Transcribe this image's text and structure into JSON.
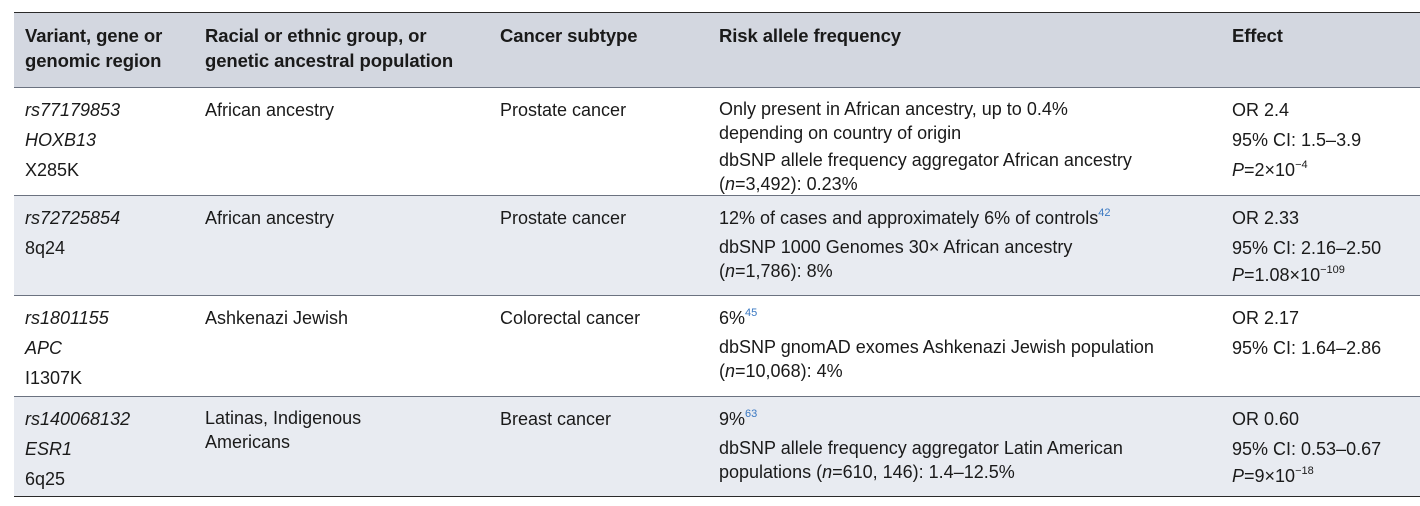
{
  "headers": {
    "variant": [
      "Variant, gene or",
      "genomic region"
    ],
    "group": [
      "Racial or ethnic group, or",
      "genetic ancestral population"
    ],
    "subtype": "Cancer subtype",
    "frequency": "Risk allele frequency",
    "effect": "Effect"
  },
  "rows": [
    {
      "variant": [
        "rs77179853",
        "HOXB13",
        "X285K"
      ],
      "group": "African ancestry",
      "subtype": "Prostate cancer",
      "freq1": [
        "Only present in African ancestry, up to 0.4%",
        "depending on country of origin"
      ],
      "freq2_a": "dbSNP allele frequency aggregator African ancestry",
      "freq2_b_pre": "(",
      "freq2_b_n": "n",
      "freq2_b_post": "=3,492): 0.23%",
      "effect_or": "OR 2.4",
      "effect_ci": "95% CI: 1.5–3.9",
      "effect_p_label": "P",
      "effect_p_base": "=2×10",
      "effect_p_exp": "−4"
    },
    {
      "variant": [
        "rs72725854",
        "8q24"
      ],
      "group": "African ancestry",
      "subtype": "Prostate cancer",
      "freq1_text": "12% of cases and approximately 6% of controls",
      "freq1_ref": "42",
      "freq2_a": "dbSNP 1000 Genomes 30× African ancestry",
      "freq2_b_pre": "(",
      "freq2_b_n": "n",
      "freq2_b_post": "=1,786): 8%",
      "effect_or": "OR 2.33",
      "effect_ci": "95% CI: 2.16–2.50",
      "effect_p_label": "P",
      "effect_p_base": "=1.08×10",
      "effect_p_exp": "−109"
    },
    {
      "variant": [
        "rs1801155",
        "APC",
        "I1307K"
      ],
      "group": "Ashkenazi Jewish",
      "subtype": "Colorectal cancer",
      "freq1_text": "6%",
      "freq1_ref": "45",
      "freq2_a": "dbSNP gnomAD exomes Ashkenazi Jewish population",
      "freq2_b_pre": "(",
      "freq2_b_n": "n",
      "freq2_b_post": "=10,068): 4%",
      "effect_or": "OR 2.17",
      "effect_ci": "95% CI: 1.64–2.86"
    },
    {
      "variant": [
        "rs140068132",
        "ESR1",
        "6q25"
      ],
      "group": [
        "Latinas, Indigenous",
        "Americans"
      ],
      "subtype": "Breast cancer",
      "freq1_text": "9%",
      "freq1_ref": "63",
      "freq2_a": "dbSNP allele frequency aggregator Latin American",
      "freq2_b_pre": "populations (",
      "freq2_b_n": "n",
      "freq2_b_post": "=610, 146): 1.4–12.5%",
      "effect_or": "OR 0.60",
      "effect_ci": "95% CI: 0.53–0.67",
      "effect_p_label": "P",
      "effect_p_base": "=9×10",
      "effect_p_exp": "−18"
    }
  ]
}
